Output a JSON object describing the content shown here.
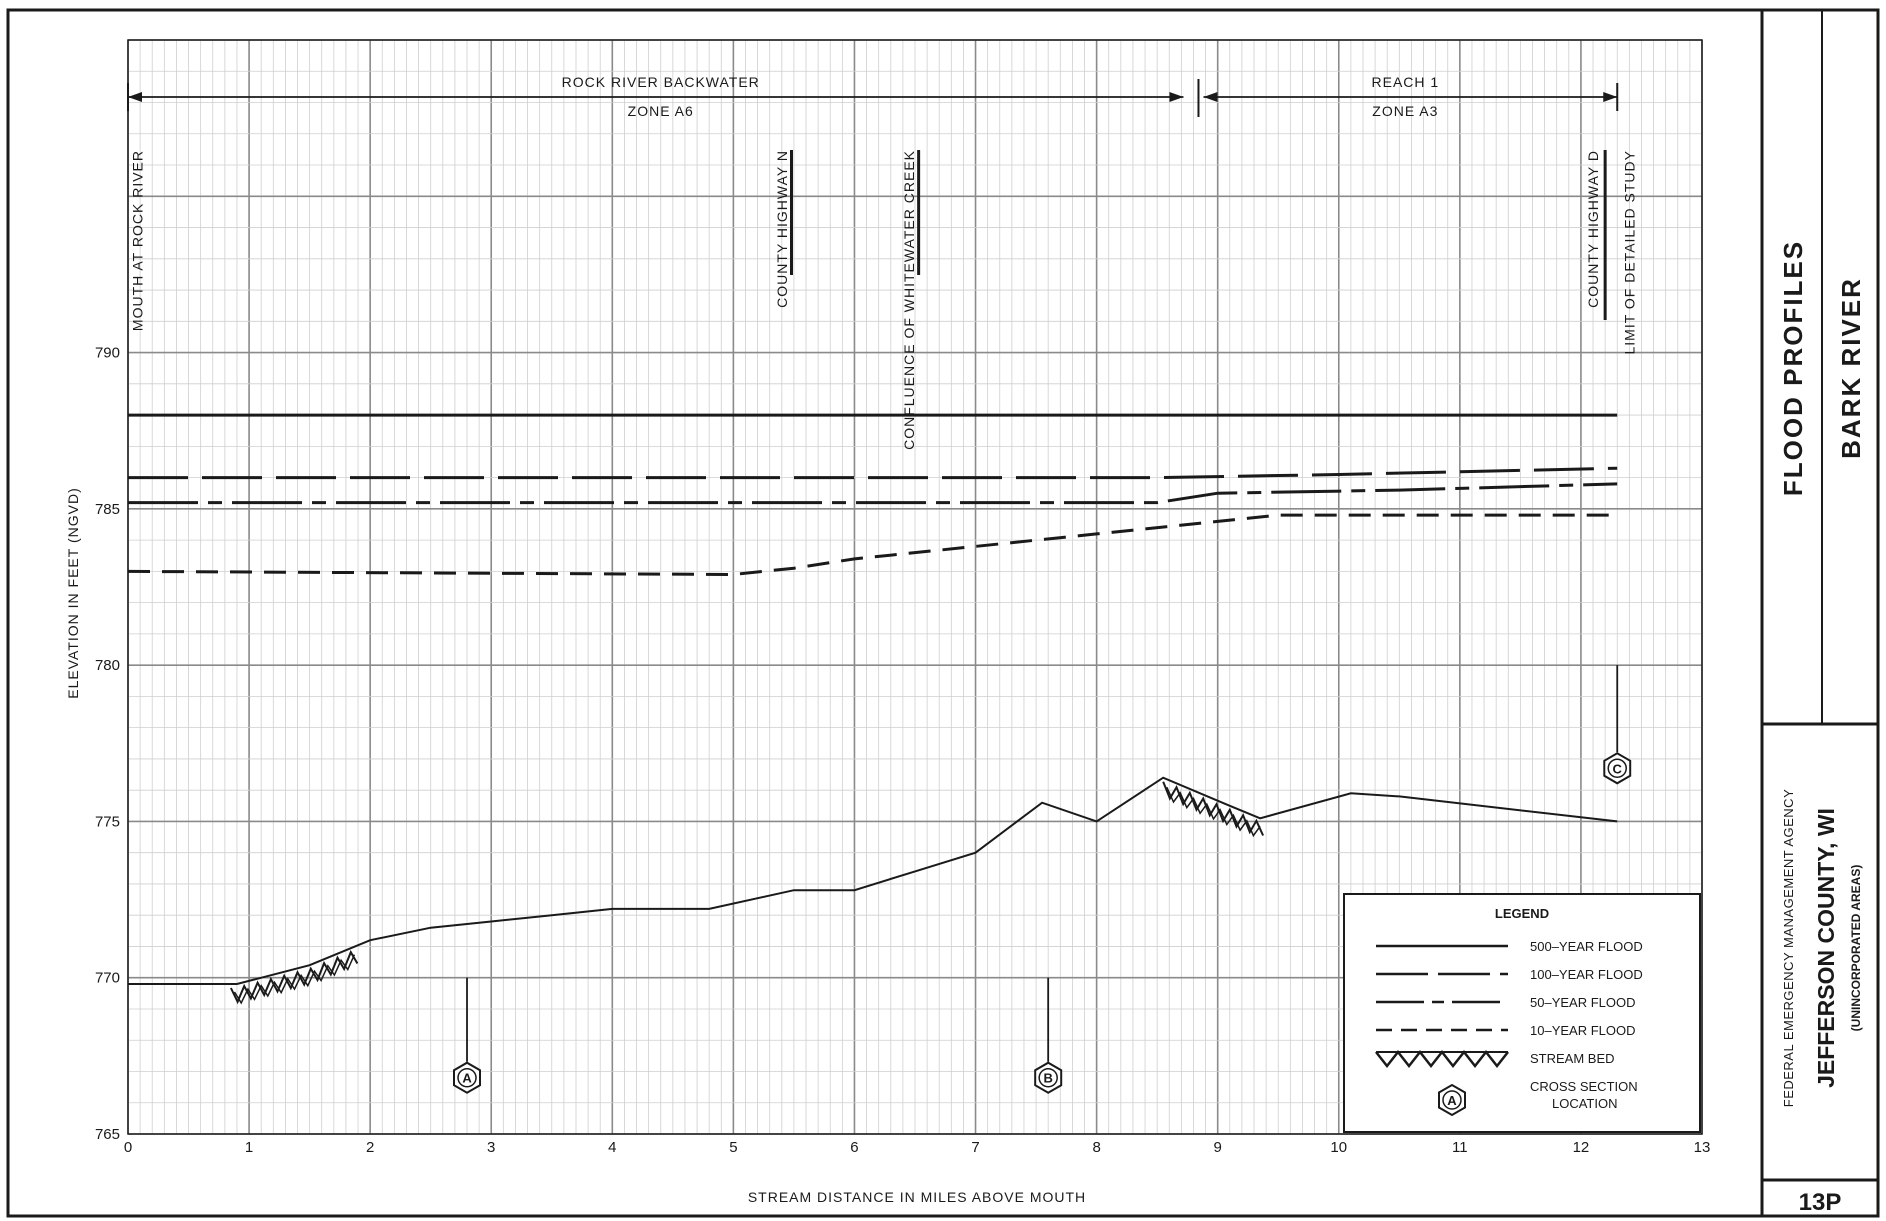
{
  "chart_data": {
    "type": "line",
    "xlabel": "STREAM DISTANCE IN MILES ABOVE MOUTH",
    "ylabel": "ELEVATION IN FEET (NGVD)",
    "xlim": [
      0,
      13
    ],
    "ylim": [
      765,
      800
    ],
    "x_ticks": [
      "0",
      "1",
      "2",
      "3",
      "4",
      "5",
      "6",
      "7",
      "8",
      "9",
      "10",
      "11",
      "12",
      "13"
    ],
    "y_ticks": [
      {
        "value": 765,
        "label": "765"
      },
      {
        "value": 770,
        "label": "770"
      },
      {
        "value": 775,
        "label": "775"
      },
      {
        "value": 780,
        "label": "780"
      },
      {
        "value": 785,
        "label": "785"
      },
      {
        "value": 790,
        "label": "790"
      }
    ],
    "grid": true,
    "series": [
      {
        "name": "500-YEAR FLOOD",
        "style": "solid",
        "points": [
          [
            0,
            788.0
          ],
          [
            12.3,
            788.0
          ]
        ]
      },
      {
        "name": "100-YEAR FLOOD",
        "style": "longdash",
        "points": [
          [
            0,
            786.0
          ],
          [
            8.5,
            786.0
          ],
          [
            10.0,
            786.1
          ],
          [
            12.3,
            786.3
          ]
        ]
      },
      {
        "name": "50-YEAR FLOOD",
        "style": "dashdot",
        "points": [
          [
            0,
            785.2
          ],
          [
            8.5,
            785.2
          ],
          [
            9.0,
            785.5
          ],
          [
            10.5,
            785.6
          ],
          [
            12.3,
            785.8
          ]
        ]
      },
      {
        "name": "10-YEAR FLOOD",
        "style": "shortdash",
        "points": [
          [
            0,
            783.0
          ],
          [
            5.0,
            782.9
          ],
          [
            5.5,
            783.1
          ],
          [
            6.0,
            783.4
          ],
          [
            7.0,
            783.8
          ],
          [
            8.0,
            784.2
          ],
          [
            9.0,
            784.6
          ],
          [
            9.5,
            784.8
          ],
          [
            12.3,
            784.8
          ]
        ]
      },
      {
        "name": "STREAM BED",
        "style": "bed",
        "points": [
          [
            0,
            769.8
          ],
          [
            0.9,
            769.8
          ],
          [
            1.5,
            770.4
          ],
          [
            2.0,
            771.2
          ],
          [
            2.5,
            771.6
          ],
          [
            3.0,
            771.8
          ],
          [
            3.5,
            772.0
          ],
          [
            4.0,
            772.2
          ],
          [
            4.8,
            772.2
          ],
          [
            5.5,
            772.8
          ],
          [
            6.0,
            772.8
          ],
          [
            6.5,
            773.4
          ],
          [
            7.0,
            774.0
          ],
          [
            7.55,
            775.6
          ],
          [
            8.0,
            775.0
          ],
          [
            8.55,
            776.4
          ],
          [
            9.1,
            775.5
          ],
          [
            9.35,
            775.1
          ],
          [
            10.1,
            775.9
          ],
          [
            10.5,
            775.8
          ],
          [
            12.3,
            775.0
          ]
        ]
      }
    ],
    "hatch_segments": [
      [
        0.85,
        1.9
      ],
      [
        8.55,
        9.4
      ]
    ],
    "cross_sections": [
      {
        "label": "A",
        "x": 2.8,
        "line_top": 770.0,
        "marker_y": 766.8
      },
      {
        "label": "B",
        "x": 7.6,
        "line_top": 770.0,
        "marker_y": 766.8
      },
      {
        "label": "C",
        "x": 12.3,
        "line_top": 780.0,
        "marker_y": 776.7
      }
    ],
    "reaches": [
      {
        "line1": "ROCK RIVER BACKWATER",
        "line2": "ZONE A6",
        "x_start": 0,
        "x_end": 8.8
      },
      {
        "line1": "REACH 1",
        "line2": "ZONE A3",
        "x_start": 8.8,
        "x_end": 12.3
      }
    ],
    "annotations": [
      {
        "text": "MOUTH AT ROCK RIVER",
        "x": 0.08
      },
      {
        "text": "COUNTY HIGHWAY N",
        "x": 5.4
      },
      {
        "text": "CONFLUENCE OF WHITEWATER CREEK",
        "x": 6.45
      },
      {
        "text": "COUNTY HIGHWAY D",
        "x": 12.1
      },
      {
        "text": "LIMIT OF DETAILED STUDY",
        "x": 12.4
      }
    ],
    "legend": {
      "title": "LEGEND",
      "position": "bottom-right",
      "entries": [
        {
          "label": "500–YEAR FLOOD",
          "style": "solid"
        },
        {
          "label": "100–YEAR FLOOD",
          "style": "longdash"
        },
        {
          "label": "50–YEAR FLOOD",
          "style": "dashdot"
        },
        {
          "label": "10–YEAR FLOOD",
          "style": "shortdash"
        },
        {
          "label": "STREAM BED",
          "style": "bed"
        },
        {
          "label": "CROSS SECTION",
          "label2": "LOCATION",
          "style": "marker",
          "marker": "A"
        }
      ]
    }
  },
  "title_block": {
    "title": "FLOOD PROFILES",
    "river": "BARK RIVER",
    "agency": "FEDERAL EMERGENCY MANAGEMENT AGENCY",
    "county": "JEFFERSON COUNTY, WI",
    "county_sub": "(UNINCORPORATED AREAS)",
    "sheet": "13P"
  },
  "colors": {
    "ink": "#1a1a1a",
    "grid_minor": "#cfcfcf",
    "grid_major": "#8a8a8a"
  }
}
